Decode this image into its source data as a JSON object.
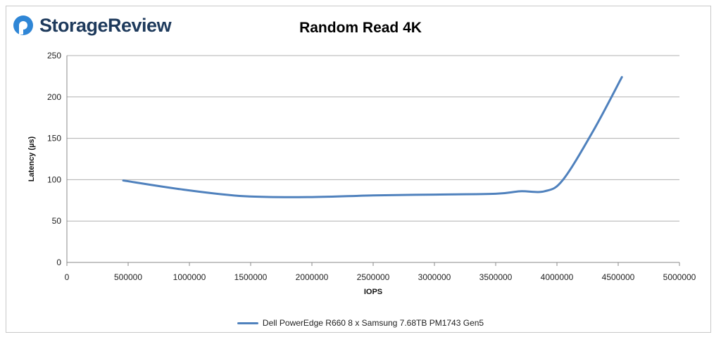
{
  "brand": {
    "name": "StorageReview",
    "icon": "storagereview-logo-icon",
    "icon_color": "#2f86d6",
    "text_color": "#1e3a5c"
  },
  "chart_data": {
    "type": "line",
    "title": "Random Read 4K",
    "xlabel": "IOPS",
    "ylabel": "Latency (µs)",
    "xlim": [
      0,
      5000000
    ],
    "ylim": [
      0,
      250
    ],
    "xticks": [
      0,
      500000,
      1000000,
      1500000,
      2000000,
      2500000,
      3000000,
      3500000,
      4000000,
      4500000,
      5000000
    ],
    "yticks": [
      0,
      50,
      100,
      150,
      200,
      250
    ],
    "grid": "horizontal",
    "legend_position": "bottom",
    "series": [
      {
        "name": "Dell PowerEdge R660 8 x Samsung 7.68TB PM1743 Gen5",
        "color": "#4f81bd",
        "x": [
          460000,
          950000,
          1450000,
          2000000,
          2500000,
          3000000,
          3500000,
          3700000,
          3900000,
          4050000,
          4300000,
          4530000
        ],
        "y": [
          99,
          88,
          80,
          79,
          81,
          82,
          83,
          86,
          86,
          100,
          160,
          224
        ]
      }
    ]
  }
}
